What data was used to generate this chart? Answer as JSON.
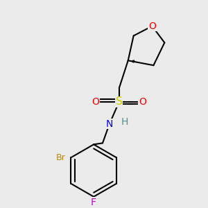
{
  "background_color": "#ebebeb",
  "bond_color": "#000000",
  "bond_width": 1.5,
  "atom_colors": {
    "O": "#ff0000",
    "S": "#cccc00",
    "N": "#0000ff",
    "Br": "#b8860b",
    "F": "#cc00cc",
    "H": "#4a9090",
    "C": "#000000"
  },
  "font_size": 9
}
